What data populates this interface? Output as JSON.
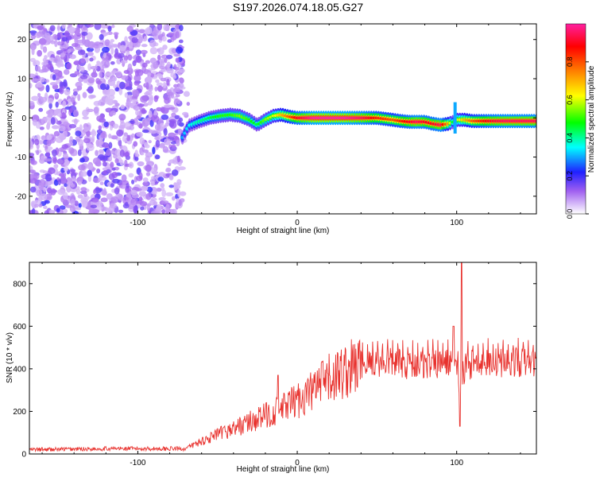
{
  "title": "S197.2026.074.18.05.G27",
  "chart_data": [
    {
      "type": "heatmap",
      "xlabel": "Height of straight line (km)",
      "ylabel": "Frequency (Hz)",
      "xlim": [
        -168,
        150
      ],
      "ylim": [
        -24.5,
        24
      ],
      "xticks": [
        -100,
        0,
        100
      ],
      "yticks": [
        -20,
        -10,
        0,
        10,
        20
      ],
      "colorbar": {
        "label": "Normalized spectral amplitude",
        "range": [
          0,
          1
        ],
        "ticks": [
          0.0,
          0.2,
          0.4,
          0.6,
          0.8
        ]
      },
      "noise_region_x": [
        -168,
        -72
      ],
      "ridge": {
        "x": [
          -72,
          -68,
          -62,
          -55,
          -48,
          -42,
          -36,
          -30,
          -25,
          -20,
          -15,
          -10,
          -5,
          0,
          10,
          20,
          30,
          40,
          50,
          60,
          65,
          70,
          75,
          80,
          85,
          90,
          95,
          98,
          100,
          105,
          110,
          120,
          130,
          140,
          150
        ],
        "y": [
          -5,
          -2,
          -1,
          0,
          0.5,
          0.8,
          0.5,
          -0.5,
          -1.8,
          -0.5,
          0.5,
          0.8,
          0.3,
          0,
          0,
          0,
          0,
          0,
          0,
          -0.5,
          -0.8,
          -1,
          -1,
          -1,
          -1.5,
          -1.8,
          -1.5,
          -1,
          -0.5,
          -0.5,
          -0.8,
          -0.8,
          -0.8,
          -0.8,
          -0.8
        ],
        "amplitude": [
          0.3,
          0.35,
          0.4,
          0.45,
          0.5,
          0.5,
          0.55,
          0.5,
          0.45,
          0.55,
          0.6,
          0.7,
          0.8,
          0.9,
          1.0,
          1.0,
          1.0,
          0.95,
          0.85,
          0.8,
          0.85,
          0.9,
          0.95,
          0.9,
          0.9,
          0.95,
          0.7,
          0.4,
          0.6,
          0.7,
          0.8,
          0.9,
          0.95,
          0.95,
          0.95
        ]
      }
    },
    {
      "type": "line",
      "xlabel": "Height of straight line (km)",
      "ylabel": "SNR (10 * v/v)",
      "xlim": [
        -168,
        150
      ],
      "ylim": [
        0,
        900
      ],
      "xticks": [
        -100,
        0,
        100
      ],
      "yticks": [
        0,
        200,
        400,
        600,
        800
      ],
      "series": [
        {
          "name": "SNR",
          "color": "#e8322e",
          "trend_x": [
            -168,
            -120,
            -70,
            -60,
            -50,
            -40,
            -30,
            -20,
            -10,
            0,
            10,
            20,
            30,
            40,
            50,
            60,
            70,
            80,
            90,
            95,
            100,
            103,
            106,
            110,
            120,
            130,
            140,
            150
          ],
          "trend_y": [
            20,
            25,
            25,
            60,
            90,
            120,
            150,
            180,
            210,
            250,
            300,
            350,
            390,
            420,
            430,
            430,
            420,
            420,
            420,
            430,
            390,
            300,
            420,
            420,
            430,
            430,
            430,
            430
          ],
          "spikes": [
            {
              "x": -12,
              "y": 370
            },
            {
              "x": 98,
              "y": 600
            },
            {
              "x": 102,
              "y": 130
            },
            {
              "x": 103,
              "y": 900
            }
          ]
        }
      ]
    }
  ]
}
